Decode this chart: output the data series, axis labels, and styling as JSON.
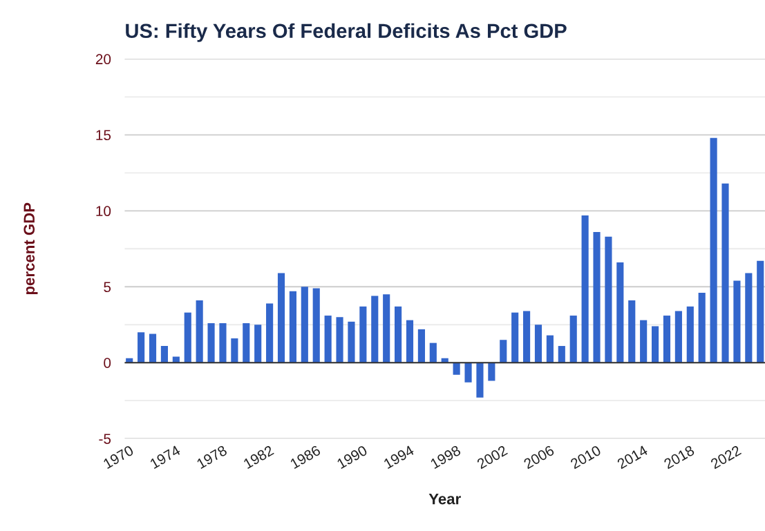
{
  "chart_data": {
    "type": "bar",
    "title": "US: Fifty Years Of Federal Deficits As Pct GDP",
    "xlabel": "Year",
    "ylabel": "percent GDP",
    "x": [
      1970,
      1971,
      1972,
      1973,
      1974,
      1975,
      1976,
      1977,
      1978,
      1979,
      1980,
      1981,
      1982,
      1983,
      1984,
      1985,
      1986,
      1987,
      1988,
      1989,
      1990,
      1991,
      1992,
      1993,
      1994,
      1995,
      1996,
      1997,
      1998,
      1999,
      2000,
      2001,
      2002,
      2003,
      2004,
      2005,
      2006,
      2007,
      2008,
      2009,
      2010,
      2011,
      2012,
      2013,
      2014,
      2015,
      2016,
      2017,
      2018,
      2019,
      2020,
      2021,
      2022,
      2023,
      2024
    ],
    "values": [
      0.3,
      2.0,
      1.9,
      1.1,
      0.4,
      3.3,
      4.1,
      2.6,
      2.6,
      1.6,
      2.6,
      2.5,
      3.9,
      5.9,
      4.7,
      5.0,
      4.9,
      3.1,
      3.0,
      2.7,
      3.7,
      4.4,
      4.5,
      3.7,
      2.8,
      2.2,
      1.3,
      0.3,
      -0.8,
      -1.3,
      -2.3,
      -1.2,
      1.5,
      3.3,
      3.4,
      2.5,
      1.8,
      1.1,
      3.1,
      9.7,
      8.6,
      8.3,
      6.6,
      4.1,
      2.8,
      2.4,
      3.1,
      3.4,
      3.7,
      4.6,
      14.8,
      11.8,
      5.4,
      5.9,
      6.7
    ],
    "color": "#3366cc",
    "xlim": [
      1969.6,
      2024.4
    ],
    "xticks": [
      1970,
      1974,
      1978,
      1982,
      1986,
      1990,
      1994,
      1998,
      2002,
      2006,
      2010,
      2014,
      2018,
      2022
    ],
    "ylim": [
      -5,
      20
    ],
    "yticks": [
      -5,
      {
        "value": -2.5,
        "label": null
      },
      0,
      {
        "value": 2.5,
        "label": null
      },
      5,
      {
        "value": 7.5,
        "label": null
      },
      10,
      {
        "value": 12.5,
        "label": null
      },
      15,
      {
        "value": 17.5,
        "label": null
      },
      20
    ],
    "grid": "y",
    "legend": false,
    "ref_lines": [
      {
        "axis": "y",
        "value": 0,
        "color": "#333333"
      }
    ]
  }
}
